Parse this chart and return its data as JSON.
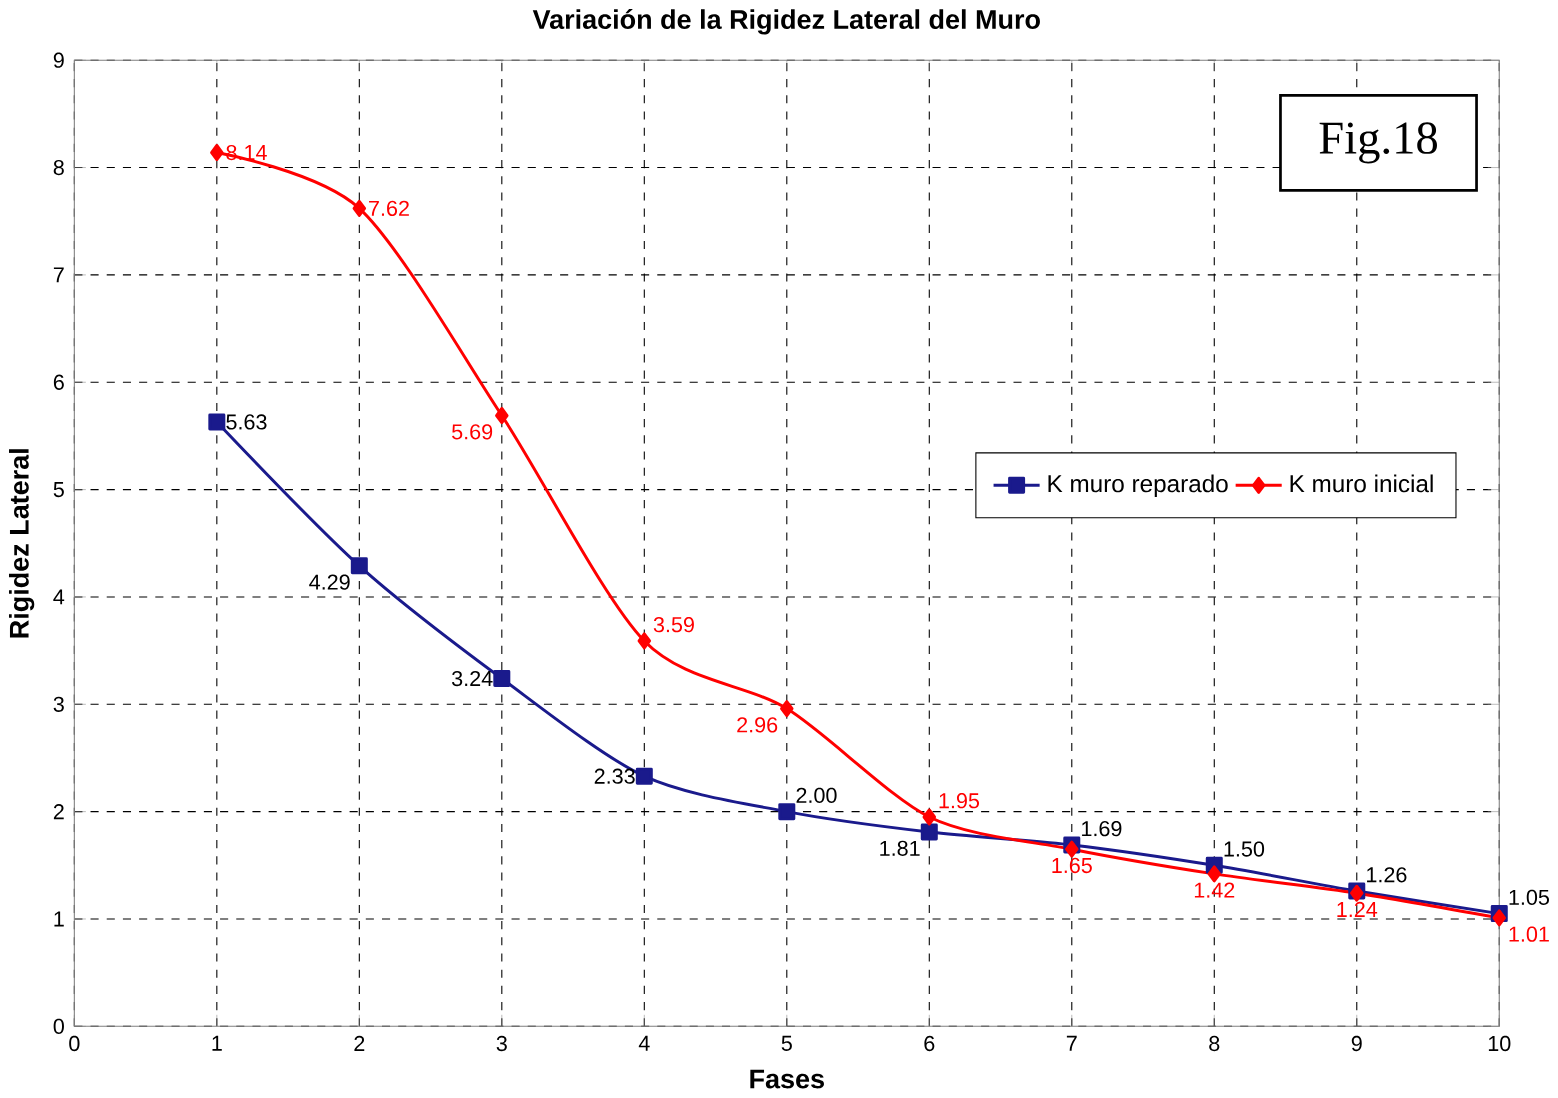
{
  "chart_data": {
    "type": "line",
    "title": "Variación de la Rigidez Lateral del Muro",
    "xlabel": "Fases",
    "ylabel": "Rigidez Lateral",
    "x": [
      1,
      2,
      3,
      4,
      5,
      6,
      7,
      8,
      9,
      10
    ],
    "series": [
      {
        "name": "K muro reparado",
        "color": "#1a1a8c",
        "marker": "square",
        "values": [
          5.63,
          4.29,
          3.24,
          2.33,
          2.0,
          1.81,
          1.69,
          1.5,
          1.26,
          1.05
        ],
        "value_labels": [
          "5.63",
          "4.29",
          "3.24",
          "2.33",
          "2.00",
          "1.81",
          "1.69",
          "1.50",
          "1.26",
          "1.05"
        ]
      },
      {
        "name": "K muro inicial",
        "color": "#ff0000",
        "marker": "diamond",
        "values": [
          8.14,
          7.62,
          5.69,
          3.59,
          2.96,
          1.95,
          1.65,
          1.42,
          1.24,
          1.01
        ],
        "value_labels": [
          "8.14",
          "7.62",
          "5.69",
          "3.59",
          "2.96",
          "1.95",
          "1.65",
          "1.42",
          "1.24",
          "1.01"
        ]
      }
    ],
    "xlim": [
      0,
      10
    ],
    "xticks": [
      0,
      1,
      2,
      3,
      4,
      5,
      6,
      7,
      8,
      9,
      10
    ],
    "ylim": [
      0,
      9
    ],
    "yticks": [
      0,
      1,
      2,
      3,
      4,
      5,
      6,
      7,
      8,
      9
    ],
    "grid": true,
    "legend": "right",
    "annotations": [
      "Fig.18"
    ]
  }
}
